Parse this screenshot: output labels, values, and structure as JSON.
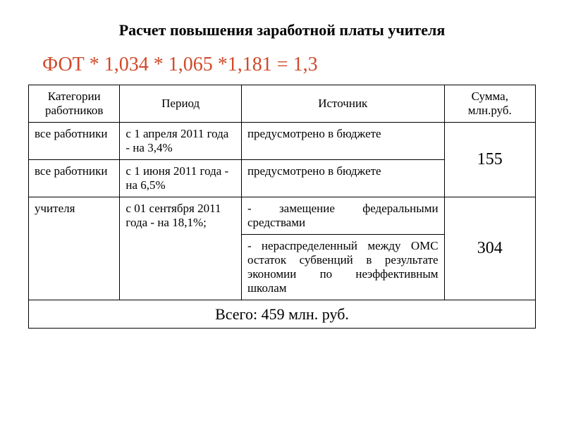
{
  "title": "Расчет повышения заработной платы учителя",
  "formula": "ФОТ * 1,034 * 1,065 *1,181 = 1,3",
  "table": {
    "headers": {
      "col1": "Категории работников",
      "col2": "Период",
      "col3": "Источник",
      "col4": "Сумма, млн.руб."
    },
    "rows": {
      "r1_category": "все работники",
      "r1_period": "с 1 апреля 2011 года - на 3,4%",
      "r1_source": "предусмотрено в бюджете",
      "r2_category": "все работники",
      "r2_period": "с 1 июня 2011 года - на 6,5%",
      "r2_source": "предусмотрено в бюджете",
      "sum_12": "155",
      "r3_category": "учителя",
      "r3_period": "с 01 сентября 2011 года - на 18,1%;",
      "r3_source_a": "- замещение федеральными средствами",
      "r3_source_b": "- нераспределенный между ОМС остаток субвенций в результате экономии по неэффективным школам",
      "sum_3": "304"
    },
    "footer": "Всего: 459 млн. руб."
  },
  "styling": {
    "title_color": "#000000",
    "formula_color": "#d04a2a",
    "border_color": "#000000",
    "background_color": "#ffffff"
  }
}
